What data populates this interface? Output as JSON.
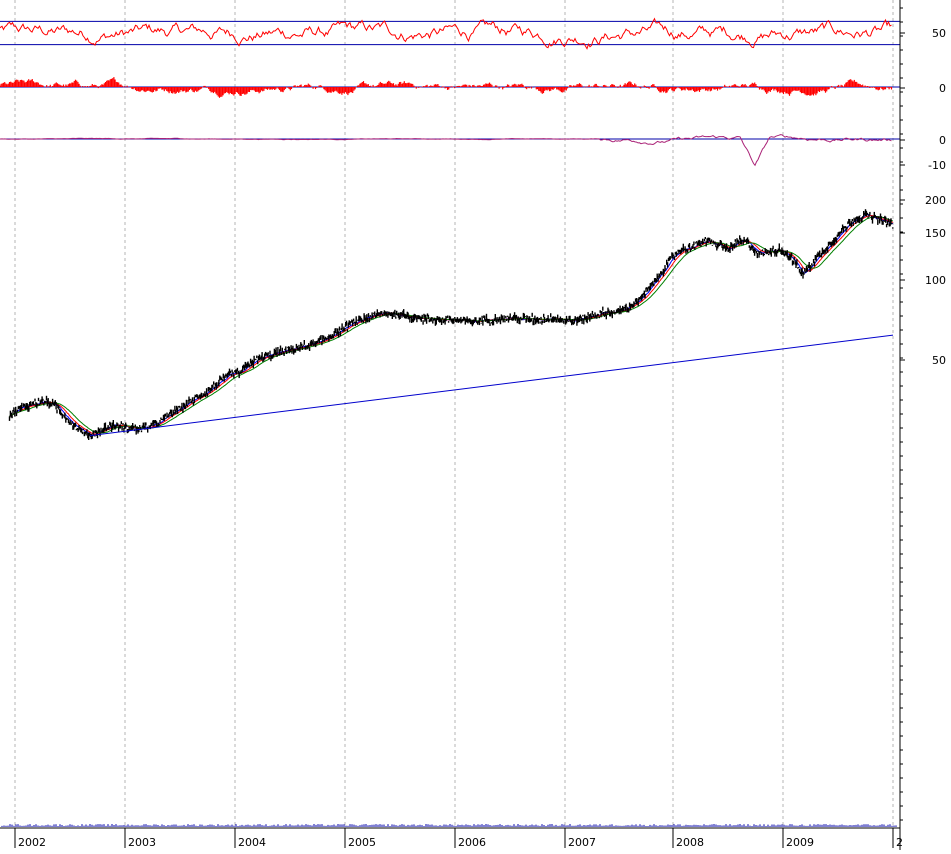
{
  "chart_data": {
    "type": "line",
    "y_scale": "log",
    "grid": "vertical dashed yearly",
    "x_axis": {
      "tick_labels": [
        "2002",
        "2003",
        "2004",
        "2005",
        "2006",
        "2007",
        "2008",
        "2009",
        "2"
      ]
    },
    "panels": [
      {
        "name": "oscillator",
        "type": "line",
        "y_tick_labels": [
          "50"
        ],
        "reference_levels": [
          70,
          30
        ],
        "line_color": "#ff0000",
        "reference_color": "#0000aa"
      },
      {
        "name": "histogram",
        "type": "bar",
        "y_tick_labels": [
          "0"
        ],
        "bar_color": "#ff0000"
      },
      {
        "name": "momentum",
        "type": "line",
        "y_tick_labels": [
          "0",
          "-10"
        ],
        "line_color": "#aa2277",
        "zero_line_color": "#0000aa"
      },
      {
        "name": "price",
        "type": "line",
        "y_tick_labels": [
          "200",
          "150",
          "100",
          "50"
        ],
        "price_color": "#000000",
        "ma_colors": [
          "#0000ff",
          "#ff0000",
          "#008000"
        ],
        "trendline": {
          "from": [
            2002.68,
            26
          ],
          "to": [
            2010.0,
            62
          ],
          "color": "#0000cc"
        },
        "series": {
          "x": [
            2001.95,
            2002.05,
            2002.15,
            2002.25,
            2002.35,
            2002.45,
            2002.55,
            2002.68,
            2002.8,
            2002.9,
            2003.0,
            2003.1,
            2003.2,
            2003.3,
            2003.4,
            2003.5,
            2003.6,
            2003.75,
            2003.85,
            2003.95,
            2004.05,
            2004.15,
            2004.3,
            2004.45,
            2004.6,
            2004.75,
            2004.85,
            2004.95,
            2005.05,
            2005.2,
            2005.35,
            2005.5,
            2005.65,
            2005.8,
            2005.95,
            2006.1,
            2006.2,
            2006.35,
            2006.5,
            2006.65,
            2006.8,
            2006.9,
            2007.05,
            2007.2,
            2007.35,
            2007.5,
            2007.6,
            2007.7,
            2007.8,
            2007.95,
            2008.05,
            2008.15,
            2008.3,
            2008.42,
            2008.5,
            2008.6,
            2008.68,
            2008.78,
            2008.88,
            2008.98,
            2009.08,
            2009.18,
            2009.3,
            2009.45,
            2009.55,
            2009.65,
            2009.75,
            2009.85,
            2009.95,
            2010.0
          ],
          "values": [
            31,
            33,
            34,
            35,
            34,
            31,
            28,
            26,
            27.5,
            28.5,
            28,
            27.5,
            28,
            29,
            31,
            33,
            35,
            38,
            41,
            44,
            45,
            49,
            52,
            54,
            56,
            58,
            61,
            64,
            68,
            72,
            75,
            74,
            72,
            71,
            71,
            70,
            70,
            71,
            72,
            71,
            71,
            72,
            70,
            72,
            75,
            76,
            80,
            85,
            95,
            115,
            128,
            132,
            140,
            135,
            130,
            140,
            138,
            125,
            128,
            130,
            120,
            105,
            120,
            140,
            155,
            170,
            175,
            170,
            165,
            160
          ]
        }
      }
    ]
  }
}
